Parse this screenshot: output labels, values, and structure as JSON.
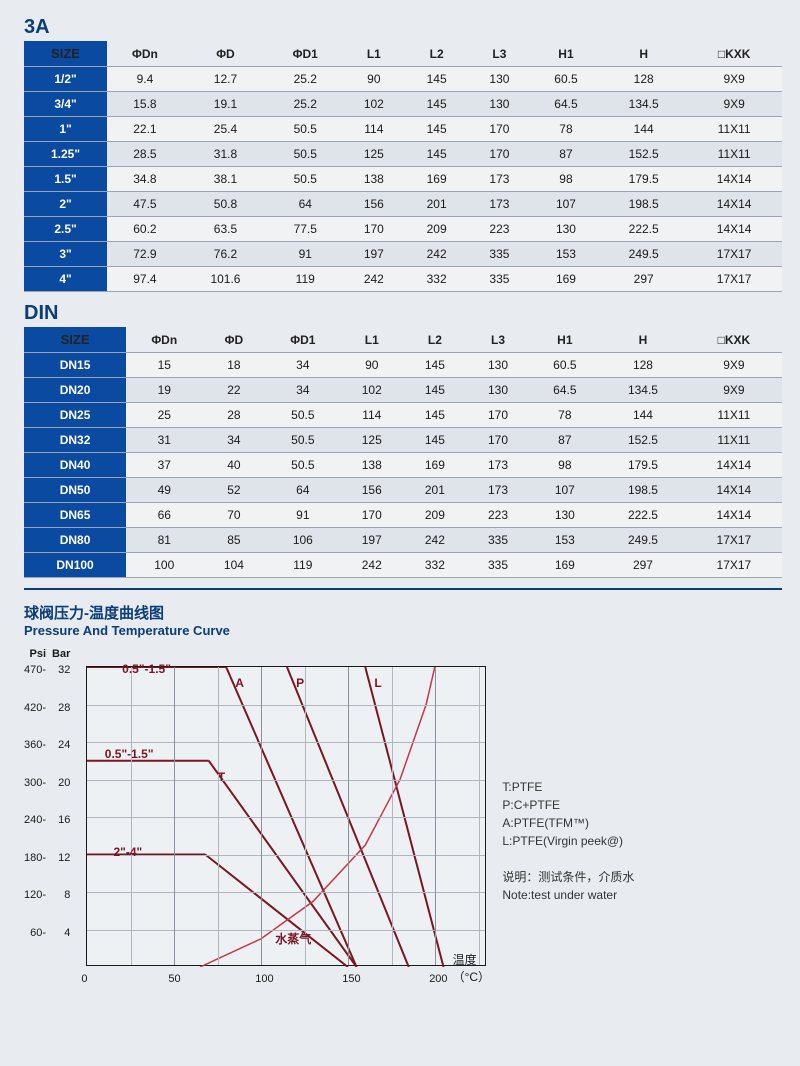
{
  "table3A": {
    "title": "3A",
    "columns": [
      "SIZE",
      "ΦDn",
      "ΦD",
      "ΦD1",
      "L1",
      "L2",
      "L3",
      "H1",
      "H",
      "□KXK"
    ],
    "rows": [
      [
        "1/2\"",
        "9.4",
        "12.7",
        "25.2",
        "90",
        "145",
        "130",
        "60.5",
        "128",
        "9X9"
      ],
      [
        "3/4\"",
        "15.8",
        "19.1",
        "25.2",
        "102",
        "145",
        "130",
        "64.5",
        "134.5",
        "9X9"
      ],
      [
        "1\"",
        "22.1",
        "25.4",
        "50.5",
        "114",
        "145",
        "170",
        "78",
        "144",
        "11X11"
      ],
      [
        "1.25\"",
        "28.5",
        "31.8",
        "50.5",
        "125",
        "145",
        "170",
        "87",
        "152.5",
        "11X11"
      ],
      [
        "1.5\"",
        "34.8",
        "38.1",
        "50.5",
        "138",
        "169",
        "173",
        "98",
        "179.5",
        "14X14"
      ],
      [
        "2\"",
        "47.5",
        "50.8",
        "64",
        "156",
        "201",
        "173",
        "107",
        "198.5",
        "14X14"
      ],
      [
        "2.5\"",
        "60.2",
        "63.5",
        "77.5",
        "170",
        "209",
        "223",
        "130",
        "222.5",
        "14X14"
      ],
      [
        "3\"",
        "72.9",
        "76.2",
        "91",
        "197",
        "242",
        "335",
        "153",
        "249.5",
        "17X17"
      ],
      [
        "4\"",
        "97.4",
        "101.6",
        "119",
        "242",
        "332",
        "335",
        "169",
        "297",
        "17X17"
      ]
    ]
  },
  "tableDIN": {
    "title": "DIN",
    "columns": [
      "SIZE",
      "ΦDn",
      "ΦD",
      "ΦD1",
      "L1",
      "L2",
      "L3",
      "H1",
      "H",
      "□KXK"
    ],
    "rows": [
      [
        "DN15",
        "15",
        "18",
        "34",
        "90",
        "145",
        "130",
        "60.5",
        "128",
        "9X9"
      ],
      [
        "DN20",
        "19",
        "22",
        "34",
        "102",
        "145",
        "130",
        "64.5",
        "134.5",
        "9X9"
      ],
      [
        "DN25",
        "25",
        "28",
        "50.5",
        "114",
        "145",
        "170",
        "78",
        "144",
        "11X11"
      ],
      [
        "DN32",
        "31",
        "34",
        "50.5",
        "125",
        "145",
        "170",
        "87",
        "152.5",
        "11X11"
      ],
      [
        "DN40",
        "37",
        "40",
        "50.5",
        "138",
        "169",
        "173",
        "98",
        "179.5",
        "14X14"
      ],
      [
        "DN50",
        "49",
        "52",
        "64",
        "156",
        "201",
        "173",
        "107",
        "198.5",
        "14X14"
      ],
      [
        "DN65",
        "66",
        "70",
        "91",
        "170",
        "209",
        "223",
        "130",
        "222.5",
        "14X14"
      ],
      [
        "DN80",
        "81",
        "85",
        "106",
        "197",
        "242",
        "335",
        "153",
        "249.5",
        "17X17"
      ],
      [
        "DN100",
        "100",
        "104",
        "119",
        "242",
        "332",
        "335",
        "169",
        "297",
        "17X17"
      ]
    ]
  },
  "chart": {
    "title_zh": "球阀压力-温度曲线图",
    "title_en": "Pressure And Temperature Curve",
    "y_psi_label": "Psi",
    "y_bar_label": "Bar",
    "y_psi_ticks": [
      "470",
      "420",
      "360",
      "300",
      "240",
      "180",
      "120",
      "60",
      ""
    ],
    "y_bar_ticks": [
      "32",
      "28",
      "24",
      "20",
      "16",
      "12",
      "8",
      "4",
      ""
    ],
    "x_label": "温度（°C）",
    "x_ticks": [
      "0",
      "50",
      "100",
      "150",
      "200"
    ],
    "xlim": [
      0,
      230
    ],
    "ylim_bar": [
      0,
      32
    ],
    "grid_color": "#b0b6c0",
    "border_color": "#1a1a1a",
    "line_color_main": "#7a1522",
    "line_color_steam": "#c2374a",
    "line_width": 2,
    "annotations": {
      "range1": "0.5\"-1.5\"",
      "range2": "0.5\"-1.5\"",
      "range3": "2\"-4\"",
      "letters": [
        "A",
        "P",
        "L",
        "T"
      ],
      "steam": "水蒸气"
    },
    "lines": [
      {
        "name": "top-flat",
        "points": [
          [
            0,
            32
          ],
          [
            80,
            32
          ]
        ]
      },
      {
        "name": "A",
        "points": [
          [
            80,
            32
          ],
          [
            155,
            0
          ]
        ]
      },
      {
        "name": "P",
        "points": [
          [
            115,
            32
          ],
          [
            185,
            0
          ]
        ]
      },
      {
        "name": "L",
        "points": [
          [
            160,
            32
          ],
          [
            205,
            0
          ]
        ]
      },
      {
        "name": "mid-flat",
        "points": [
          [
            0,
            22
          ],
          [
            70,
            22
          ]
        ]
      },
      {
        "name": "T",
        "points": [
          [
            70,
            22
          ],
          [
            155,
            0
          ]
        ]
      },
      {
        "name": "bottom-flat",
        "points": [
          [
            0,
            12
          ],
          [
            68,
            12
          ]
        ]
      },
      {
        "name": "bottom-slope",
        "points": [
          [
            68,
            12
          ],
          [
            150,
            0
          ]
        ]
      }
    ],
    "steam_curve": [
      [
        65,
        0
      ],
      [
        100,
        3
      ],
      [
        130,
        7
      ],
      [
        160,
        13
      ],
      [
        180,
        20
      ],
      [
        195,
        28
      ],
      [
        200,
        32
      ]
    ]
  },
  "legend": {
    "items": [
      "T:PTFE",
      "P:C+PTFE",
      "A:PTFE(TFM™)",
      "L:PTFE(Virgin peek@)"
    ],
    "note_zh": "说明：测试条件，介质水",
    "note_en": "Note:test under water"
  }
}
